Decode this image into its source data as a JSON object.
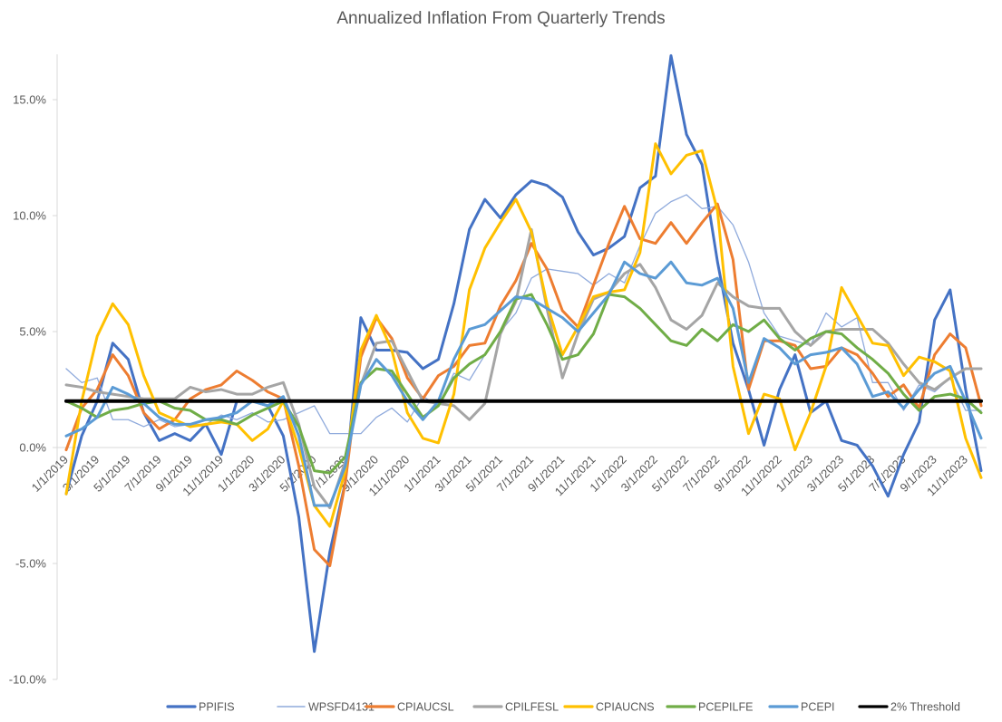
{
  "chart_data": {
    "type": "line",
    "title": "Annualized Inflation From Quarterly Trends",
    "xlabel": "",
    "ylabel": "",
    "ylim": [
      -0.1,
      0.17
    ],
    "y_ticks": [
      -0.1,
      -0.05,
      0.0,
      0.05,
      0.1,
      0.15
    ],
    "y_tick_labels": [
      "-10.0%",
      "-5.0%",
      "0.0%",
      "5.0%",
      "10.0%",
      "15.0%"
    ],
    "x_tick_labels": [
      "1/1/2019",
      "3/1/2019",
      "5/1/2019",
      "7/1/2019",
      "9/1/2019",
      "11/1/2019",
      "1/1/2020",
      "3/1/2020",
      "5/1/2020",
      "7/1/2020",
      "9/1/2020",
      "11/1/2020",
      "1/1/2021",
      "3/1/2021",
      "5/1/2021",
      "7/1/2021",
      "9/1/2021",
      "11/1/2021",
      "1/1/2022",
      "3/1/2022",
      "5/1/2022",
      "7/1/2022",
      "9/1/2022",
      "11/1/2022",
      "1/1/2023",
      "3/1/2023",
      "5/1/2023",
      "7/1/2023",
      "9/1/2023",
      "11/1/2023"
    ],
    "categories": [
      "1/1/2019",
      "2/1/2019",
      "3/1/2019",
      "4/1/2019",
      "5/1/2019",
      "6/1/2019",
      "7/1/2019",
      "8/1/2019",
      "9/1/2019",
      "10/1/2019",
      "11/1/2019",
      "12/1/2019",
      "1/1/2020",
      "2/1/2020",
      "3/1/2020",
      "4/1/2020",
      "5/1/2020",
      "6/1/2020",
      "7/1/2020",
      "8/1/2020",
      "9/1/2020",
      "10/1/2020",
      "11/1/2020",
      "12/1/2020",
      "1/1/2021",
      "2/1/2021",
      "3/1/2021",
      "4/1/2021",
      "5/1/2021",
      "6/1/2021",
      "7/1/2021",
      "8/1/2021",
      "9/1/2021",
      "10/1/2021",
      "11/1/2021",
      "12/1/2021",
      "1/1/2022",
      "2/1/2022",
      "3/1/2022",
      "4/1/2022",
      "5/1/2022",
      "6/1/2022",
      "7/1/2022",
      "8/1/2022",
      "9/1/2022",
      "10/1/2022",
      "11/1/2022",
      "12/1/2022",
      "1/1/2023",
      "2/1/2023",
      "3/1/2023",
      "4/1/2023",
      "5/1/2023",
      "6/1/2023",
      "7/1/2023",
      "8/1/2023",
      "9/1/2023",
      "10/1/2023",
      "11/1/2023",
      "12/1/2023"
    ],
    "series": [
      {
        "name": "PPIFIS",
        "color": "#4472C4",
        "width": 3,
        "values": [
          -0.02,
          0.005,
          0.02,
          0.045,
          0.038,
          0.015,
          0.003,
          0.006,
          0.003,
          0.01,
          -0.003,
          0.02,
          0.02,
          0.018,
          0.005,
          -0.03,
          -0.088,
          -0.045,
          -0.015,
          0.056,
          0.042,
          0.042,
          0.041,
          0.034,
          0.038,
          0.062,
          0.094,
          0.107,
          0.099,
          0.109,
          0.115,
          0.113,
          0.108,
          0.093,
          0.083,
          0.086,
          0.091,
          0.112,
          0.117,
          0.169,
          0.135,
          0.122,
          0.08,
          0.045,
          0.025,
          0.001,
          0.025,
          0.04,
          0.015,
          0.02,
          0.003,
          0.001,
          -0.008,
          -0.021,
          -0.003,
          0.011,
          0.055,
          0.068,
          0.025,
          -0.01
        ]
      },
      {
        "name": "WPSFD4131",
        "color": "#8FAADC",
        "width": 1.3,
        "values": [
          0.034,
          0.028,
          0.03,
          0.012,
          0.012,
          0.009,
          0.012,
          0.009,
          0.01,
          0.01,
          0.014,
          0.012,
          0.015,
          0.011,
          0.012,
          0.015,
          0.018,
          0.006,
          0.006,
          0.006,
          0.013,
          0.017,
          0.011,
          0.022,
          0.018,
          0.032,
          0.029,
          0.04,
          0.05,
          0.058,
          0.073,
          0.077,
          0.076,
          0.075,
          0.07,
          0.075,
          0.071,
          0.087,
          0.101,
          0.106,
          0.109,
          0.103,
          0.104,
          0.096,
          0.08,
          0.058,
          0.048,
          0.046,
          0.044,
          0.058,
          0.052,
          0.056,
          0.028,
          0.028,
          0.016,
          0.027,
          0.024,
          0.03,
          0.016,
          0.016
        ]
      },
      {
        "name": "CPIAUCSL",
        "color": "#ED7D31",
        "width": 3,
        "values": [
          -0.001,
          0.017,
          0.025,
          0.04,
          0.031,
          0.015,
          0.008,
          0.012,
          0.021,
          0.025,
          0.027,
          0.033,
          0.029,
          0.024,
          0.021,
          -0.008,
          -0.044,
          -0.051,
          -0.015,
          0.039,
          0.056,
          0.047,
          0.03,
          0.021,
          0.031,
          0.035,
          0.044,
          0.045,
          0.061,
          0.072,
          0.088,
          0.077,
          0.059,
          0.052,
          0.07,
          0.088,
          0.104,
          0.09,
          0.088,
          0.097,
          0.088,
          0.097,
          0.105,
          0.081,
          0.025,
          0.046,
          0.046,
          0.044,
          0.034,
          0.035,
          0.043,
          0.04,
          0.032,
          0.022,
          0.027,
          0.017,
          0.04,
          0.049,
          0.043,
          0.018
        ]
      },
      {
        "name": "CPILFESL",
        "color": "#A5A5A5",
        "width": 3,
        "values": [
          0.027,
          0.026,
          0.024,
          0.023,
          0.022,
          0.021,
          0.021,
          0.021,
          0.026,
          0.024,
          0.025,
          0.023,
          0.023,
          0.026,
          0.028,
          0.01,
          -0.017,
          -0.026,
          -0.006,
          0.027,
          0.045,
          0.046,
          0.033,
          0.02,
          0.019,
          0.018,
          0.012,
          0.019,
          0.049,
          0.063,
          0.094,
          0.06,
          0.03,
          0.049,
          0.064,
          0.067,
          0.075,
          0.079,
          0.069,
          0.055,
          0.051,
          0.057,
          0.071,
          0.065,
          0.061,
          0.06,
          0.06,
          0.05,
          0.044,
          0.05,
          0.051,
          0.051,
          0.051,
          0.045,
          0.036,
          0.028,
          0.025,
          0.03,
          0.034,
          0.034
        ]
      },
      {
        "name": "CPIAUCNS",
        "color": "#FFC000",
        "width": 3,
        "values": [
          -0.02,
          0.02,
          0.048,
          0.062,
          0.053,
          0.031,
          0.015,
          0.012,
          0.009,
          0.01,
          0.011,
          0.01,
          0.003,
          0.008,
          0.02,
          0.0,
          -0.025,
          -0.034,
          -0.01,
          0.042,
          0.057,
          0.042,
          0.015,
          0.004,
          0.002,
          0.023,
          0.068,
          0.086,
          0.097,
          0.107,
          0.093,
          0.062,
          0.04,
          0.052,
          0.065,
          0.067,
          0.068,
          0.084,
          0.131,
          0.118,
          0.126,
          0.128,
          0.102,
          0.035,
          0.006,
          0.023,
          0.021,
          -0.001,
          0.015,
          0.035,
          0.069,
          0.057,
          0.045,
          0.044,
          0.031,
          0.039,
          0.037,
          0.033,
          0.004,
          -0.013
        ]
      },
      {
        "name": "PCEPILFE",
        "color": "#70AD47",
        "width": 3,
        "values": [
          0.02,
          0.017,
          0.013,
          0.016,
          0.017,
          0.019,
          0.02,
          0.017,
          0.016,
          0.012,
          0.012,
          0.01,
          0.014,
          0.017,
          0.02,
          0.009,
          -0.01,
          -0.011,
          -0.004,
          0.028,
          0.034,
          0.033,
          0.023,
          0.013,
          0.018,
          0.03,
          0.036,
          0.04,
          0.05,
          0.064,
          0.066,
          0.053,
          0.038,
          0.04,
          0.049,
          0.066,
          0.065,
          0.06,
          0.053,
          0.046,
          0.044,
          0.051,
          0.046,
          0.053,
          0.05,
          0.055,
          0.047,
          0.042,
          0.047,
          0.05,
          0.049,
          0.043,
          0.038,
          0.032,
          0.023,
          0.016,
          0.022,
          0.023,
          0.021,
          0.015
        ]
      },
      {
        "name": "PCEPI",
        "color": "#5B9BD5",
        "width": 3,
        "values": [
          0.005,
          0.008,
          0.013,
          0.026,
          0.023,
          0.019,
          0.013,
          0.01,
          0.01,
          0.012,
          0.013,
          0.015,
          0.02,
          0.018,
          0.022,
          0.005,
          -0.025,
          -0.025,
          -0.008,
          0.027,
          0.038,
          0.031,
          0.02,
          0.012,
          0.02,
          0.038,
          0.051,
          0.053,
          0.059,
          0.065,
          0.064,
          0.06,
          0.056,
          0.05,
          0.058,
          0.066,
          0.08,
          0.075,
          0.073,
          0.08,
          0.071,
          0.07,
          0.073,
          0.06,
          0.028,
          0.047,
          0.043,
          0.036,
          0.04,
          0.041,
          0.043,
          0.036,
          0.022,
          0.024,
          0.017,
          0.025,
          0.032,
          0.035,
          0.02,
          0.004
        ]
      },
      {
        "name": "2% Threshold",
        "color": "#000000",
        "width": 4,
        "values": [
          0.02,
          0.02,
          0.02,
          0.02,
          0.02,
          0.02,
          0.02,
          0.02,
          0.02,
          0.02,
          0.02,
          0.02,
          0.02,
          0.02,
          0.02,
          0.02,
          0.02,
          0.02,
          0.02,
          0.02,
          0.02,
          0.02,
          0.02,
          0.02,
          0.02,
          0.02,
          0.02,
          0.02,
          0.02,
          0.02,
          0.02,
          0.02,
          0.02,
          0.02,
          0.02,
          0.02,
          0.02,
          0.02,
          0.02,
          0.02,
          0.02,
          0.02,
          0.02,
          0.02,
          0.02,
          0.02,
          0.02,
          0.02,
          0.02,
          0.02,
          0.02,
          0.02,
          0.02,
          0.02,
          0.02,
          0.02,
          0.02,
          0.02,
          0.02,
          0.02
        ]
      }
    ],
    "grid": false,
    "legend": "bottom"
  }
}
